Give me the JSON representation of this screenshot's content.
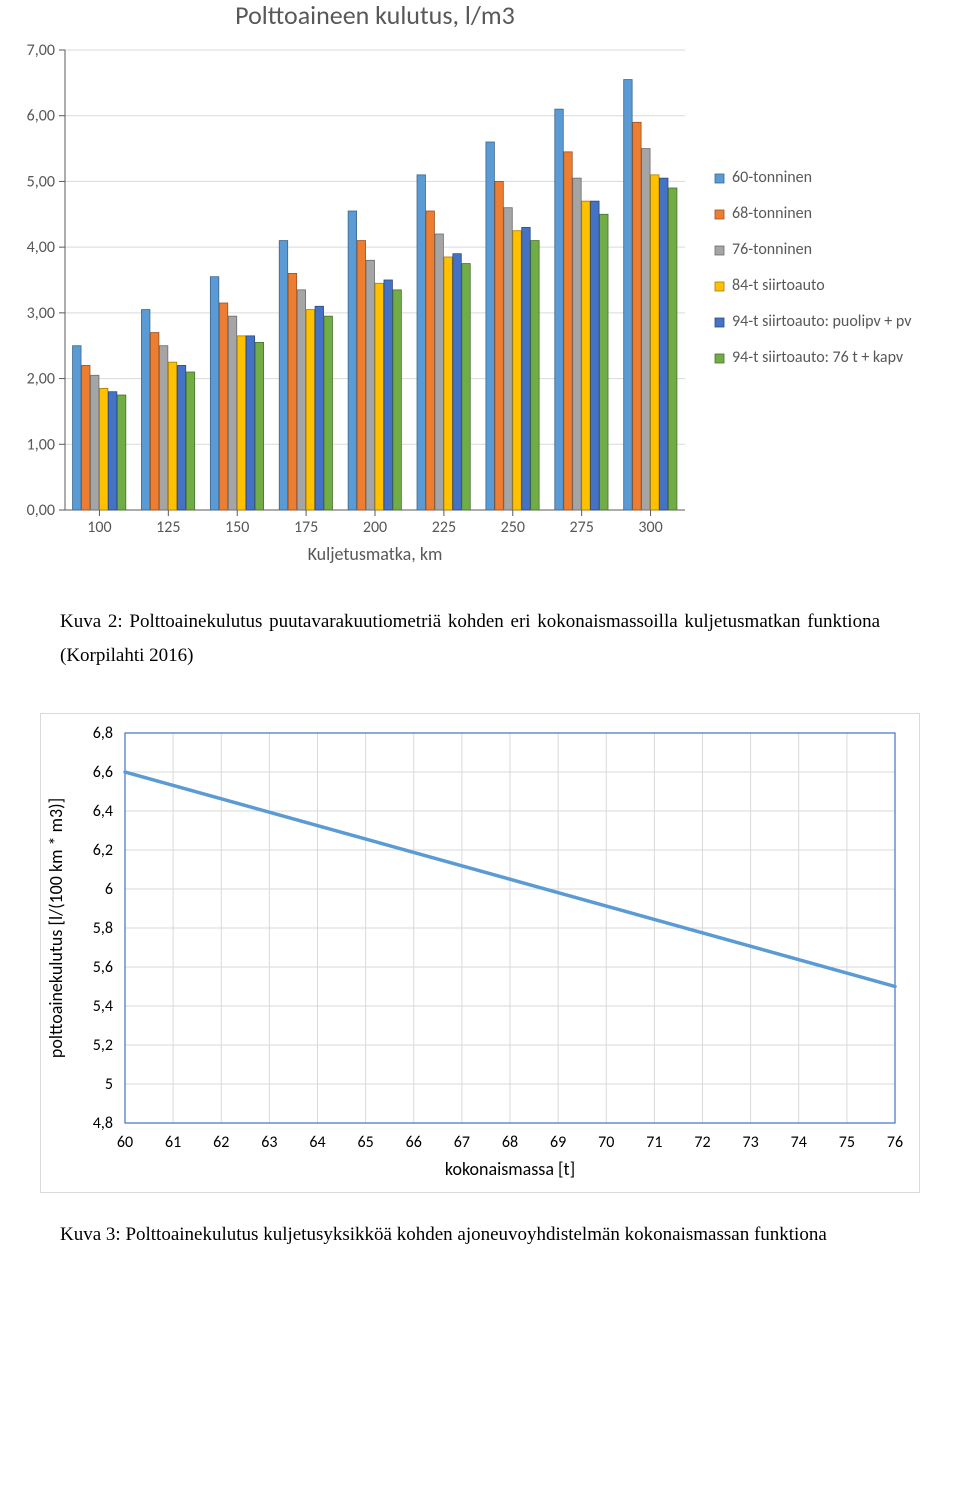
{
  "barChart": {
    "type": "bar",
    "title": "Polttoaineen kulutus, l/m3",
    "title_fontsize": 26,
    "xlabel": "Kuljetusmatka, km",
    "label_fontsize": 18,
    "categories": [
      "100",
      "125",
      "150",
      "175",
      "200",
      "225",
      "250",
      "275",
      "300"
    ],
    "series": [
      {
        "name": "60-tonninen",
        "color": "#5b9bd5",
        "values": [
          2.5,
          3.05,
          3.55,
          4.1,
          4.55,
          5.1,
          5.6,
          6.1,
          6.55
        ]
      },
      {
        "name": "68-tonninen",
        "color": "#ed7d31",
        "values": [
          2.2,
          2.7,
          3.15,
          3.6,
          4.1,
          4.55,
          5.0,
          5.45,
          5.9
        ]
      },
      {
        "name": "76-tonninen",
        "color": "#a5a5a5",
        "values": [
          2.05,
          2.5,
          2.95,
          3.35,
          3.8,
          4.2,
          4.6,
          5.05,
          5.5
        ]
      },
      {
        "name": "84-t siirtoauto",
        "color": "#ffc000",
        "values": [
          1.85,
          2.25,
          2.65,
          3.05,
          3.45,
          3.85,
          4.25,
          4.7,
          5.1
        ]
      },
      {
        "name": "94-t siirtoauto: puolipv + pv",
        "color": "#4472c4",
        "values": [
          1.8,
          2.2,
          2.65,
          3.1,
          3.5,
          3.9,
          4.3,
          4.7,
          5.05
        ]
      },
      {
        "name": "94-t siirtoauto: 76 t + kapv",
        "color": "#70ad47",
        "values": [
          1.75,
          2.1,
          2.55,
          2.95,
          3.35,
          3.75,
          4.1,
          4.5,
          4.9
        ]
      }
    ],
    "ylim": [
      0,
      7
    ],
    "ytick_step": 1.0,
    "plot_border_color": "#d9d9d9",
    "gridline_color": "#d9d9d9",
    "tick_color": "#595959",
    "background_color": "#ffffff",
    "bar_border_darken": 0.35,
    "group_gap": 0.22,
    "legend_marker_size": 9
  },
  "caption1": {
    "prefix": "Kuva 2:",
    "text": "Polttoainekulutus puutavarakuutiometriä kohden eri kokonaismassoilla kuljetusmatkan funktiona (Korpilahti 2016)"
  },
  "lineChart": {
    "type": "line",
    "ylabel": "polttoainekulutus [l/(100 km * m3)]",
    "xlabel": "kokonaismassa [t]",
    "label_fontsize": 18,
    "x_values": [
      60,
      61,
      62,
      63,
      64,
      65,
      66,
      67,
      68,
      69,
      70,
      71,
      72,
      73,
      74,
      75,
      76
    ],
    "y_start": 6.6,
    "y_end": 5.5,
    "line_color": "#5b9bd5",
    "line_width": 3.5,
    "ylim": [
      4.8,
      6.8
    ],
    "ytick_step": 0.2,
    "xlim": [
      60,
      76
    ],
    "xtick_step": 1,
    "plot_border_color": "#4472c4",
    "inner_grid_color": "#d9d9d9",
    "chart_border_color": "#d9d9d9",
    "background_color": "#ffffff"
  },
  "caption2": {
    "prefix": "Kuva 3:",
    "text": "Polttoainekulutus kuljetusyksikköä kohden ajoneuvoyhdistelmän kokonaismassan funktiona"
  }
}
